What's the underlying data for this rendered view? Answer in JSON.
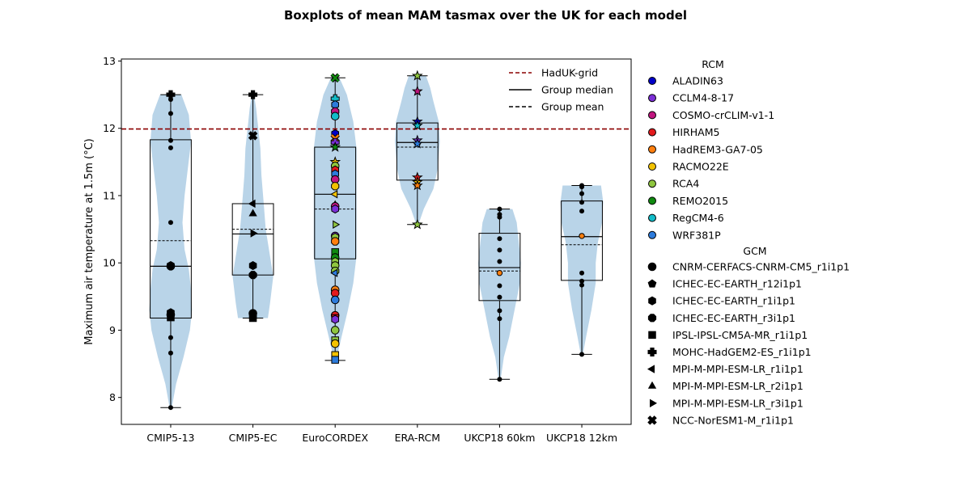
{
  "chart_data": {
    "type": "boxplot",
    "title": "Boxplots of mean MAM tasmax over the UK for each model",
    "xlabel": "",
    "ylabel": "Maximum air temperature at 1.5m (°C)",
    "ylim": [
      7.6,
      13.03
    ],
    "yticks": [
      8,
      9,
      10,
      11,
      12,
      13
    ],
    "reference_line": {
      "label": "HadUK-grid",
      "value": 11.99,
      "color": "#8b0000"
    },
    "categories": [
      "CMIP5-13",
      "CMIP5-EC",
      "EuroCORDEX",
      "ERA-RCM",
      "UKCP18 60km",
      "UKCP18 12km"
    ],
    "violin_color": "#b9d4e8",
    "groups": [
      {
        "name": "CMIP5-13",
        "box": {
          "whislo": 7.85,
          "q1": 9.18,
          "med": 9.95,
          "mean": 10.33,
          "q3": 11.83,
          "whishi": 12.5
        },
        "points": [
          {
            "y": 12.5,
            "m": "plus"
          },
          {
            "y": 12.43,
            "m": "dot"
          },
          {
            "y": 12.22,
            "m": "dot"
          },
          {
            "y": 11.82,
            "m": "dot"
          },
          {
            "y": 11.71,
            "m": "dot"
          },
          {
            "y": 10.6,
            "m": "dot"
          },
          {
            "y": 9.96,
            "m": "hexagon"
          },
          {
            "y": 9.95,
            "m": "circle"
          },
          {
            "y": 9.26,
            "m": "hexagon"
          },
          {
            "y": 9.23,
            "m": "circle"
          },
          {
            "y": 9.19,
            "m": "square"
          },
          {
            "y": 8.89,
            "m": "dot"
          },
          {
            "y": 8.66,
            "m": "dot"
          },
          {
            "y": 7.85,
            "m": "dot"
          }
        ]
      },
      {
        "name": "CMIP5-EC",
        "box": {
          "whislo": 9.18,
          "q1": 9.82,
          "med": 10.43,
          "mean": 10.5,
          "q3": 10.88,
          "whishi": 12.5
        },
        "points": [
          {
            "y": 12.5,
            "m": "plus"
          },
          {
            "y": 11.89,
            "m": "x"
          },
          {
            "y": 10.88,
            "m": "tri_left"
          },
          {
            "y": 10.73,
            "m": "tri_up"
          },
          {
            "y": 10.44,
            "m": "tri_right"
          },
          {
            "y": 9.96,
            "m": "hexagon"
          },
          {
            "y": 9.82,
            "m": "octagon"
          },
          {
            "y": 9.25,
            "m": "circle"
          },
          {
            "y": 9.2,
            "m": "hexagon"
          },
          {
            "y": 9.18,
            "m": "square"
          }
        ]
      },
      {
        "name": "EuroCORDEX",
        "box": {
          "whislo": 8.55,
          "q1": 10.06,
          "med": 11.02,
          "mean": 10.8,
          "q3": 11.72,
          "whishi": 12.75
        },
        "points": [
          {
            "y": 12.75,
            "m": "x",
            "c": "REMO2015"
          },
          {
            "y": 12.44,
            "m": "plus",
            "c": "RegCM4-6"
          },
          {
            "y": 12.35,
            "m": "hexagon",
            "c": "WRF381P"
          },
          {
            "y": 12.25,
            "m": "octagon",
            "c": "COSMO-crCLIM-v1-1"
          },
          {
            "y": 12.18,
            "m": "circle",
            "c": "RegCM4-6"
          },
          {
            "y": 11.92,
            "m": "hexagon",
            "c": "ALADIN63"
          },
          {
            "y": 11.85,
            "m": "x",
            "c": "HadREM3-GA7-05"
          },
          {
            "y": 11.79,
            "m": "plus",
            "c": "CCLM4-8-17"
          },
          {
            "y": 11.72,
            "m": "star",
            "c": "REMO2015"
          },
          {
            "y": 11.5,
            "m": "star",
            "c": "RACMO22E"
          },
          {
            "y": 11.44,
            "m": "circle",
            "c": "RCA4"
          },
          {
            "y": 11.38,
            "m": "hexagon",
            "c": "HIRHAM5"
          },
          {
            "y": 11.32,
            "m": "hexagon",
            "c": "WRF381P"
          },
          {
            "y": 11.24,
            "m": "circle",
            "c": "COSMO-crCLIM-v1-1"
          },
          {
            "y": 11.14,
            "m": "octagon",
            "c": "RACMO22E"
          },
          {
            "y": 11.02,
            "m": "tri_left",
            "c": "RACMO22E"
          },
          {
            "y": 10.86,
            "m": "tri_up",
            "c": "RCA4"
          },
          {
            "y": 10.84,
            "m": "circle",
            "c": "COSMO-crCLIM-v1-1"
          },
          {
            "y": 10.8,
            "m": "hexagon",
            "c": "CCLM4-8-17"
          },
          {
            "y": 10.57,
            "m": "tri_right",
            "c": "RCA4"
          },
          {
            "y": 10.4,
            "m": "circle",
            "c": "CCLM4-8-17"
          },
          {
            "y": 10.38,
            "m": "hexagon",
            "c": "RCA4"
          },
          {
            "y": 10.32,
            "m": "octagon",
            "c": "HadREM3-GA7-05"
          },
          {
            "y": 10.16,
            "m": "square",
            "c": "REMO2015"
          },
          {
            "y": 10.08,
            "m": "circle",
            "c": "REMO2015"
          },
          {
            "y": 10.02,
            "m": "hexagon",
            "c": "RCA4"
          },
          {
            "y": 9.96,
            "m": "circle",
            "c": "RCA4"
          },
          {
            "y": 9.88,
            "m": "octagon",
            "c": "RCA4"
          },
          {
            "y": 9.85,
            "m": "tri_left",
            "c": "WRF381P"
          },
          {
            "y": 9.6,
            "m": "circle",
            "c": "HadREM3-GA7-05"
          },
          {
            "y": 9.55,
            "m": "circle",
            "c": "HIRHAM5"
          },
          {
            "y": 9.45,
            "m": "circle",
            "c": "WRF381P"
          },
          {
            "y": 9.22,
            "m": "circle",
            "c": "HIRHAM5"
          },
          {
            "y": 9.18,
            "m": "square",
            "c": "HIRHAM5"
          },
          {
            "y": 9.16,
            "m": "hexagon",
            "c": "CCLM4-8-17"
          },
          {
            "y": 9.0,
            "m": "circle",
            "c": "RCA4"
          },
          {
            "y": 8.85,
            "m": "square",
            "c": "RCA4"
          },
          {
            "y": 8.8,
            "m": "circle",
            "c": "RACMO22E"
          },
          {
            "y": 8.63,
            "m": "square",
            "c": "RACMO22E"
          },
          {
            "y": 8.56,
            "m": "square",
            "c": "WRF381P"
          }
        ]
      },
      {
        "name": "ERA-RCM",
        "box": {
          "whislo": 10.57,
          "q1": 11.23,
          "med": 11.79,
          "mean": 11.72,
          "q3": 12.08,
          "whishi": 12.78
        },
        "points": [
          {
            "y": 12.78,
            "m": "star",
            "c": "RCA4"
          },
          {
            "y": 12.55,
            "m": "star",
            "c": "COSMO-crCLIM-v1-1"
          },
          {
            "y": 12.1,
            "m": "star",
            "c": "ALADIN63"
          },
          {
            "y": 12.04,
            "m": "star",
            "c": "RegCM4-6"
          },
          {
            "y": 11.82,
            "m": "star",
            "c": "CCLM4-8-17"
          },
          {
            "y": 11.77,
            "m": "star",
            "c": "WRF381P"
          },
          {
            "y": 11.27,
            "m": "star",
            "c": "HIRHAM5"
          },
          {
            "y": 11.2,
            "m": "star",
            "c": "RACMO22E"
          },
          {
            "y": 11.15,
            "m": "star",
            "c": "HadREM3-GA7-05"
          },
          {
            "y": 10.57,
            "m": "star",
            "c": "RCA4"
          }
        ]
      },
      {
        "name": "UKCP18 60km",
        "box": {
          "whislo": 8.27,
          "q1": 9.44,
          "med": 9.93,
          "mean": 9.88,
          "q3": 10.44,
          "whishi": 10.8
        },
        "points": [
          {
            "y": 10.8,
            "m": "dot"
          },
          {
            "y": 10.72,
            "m": "dot"
          },
          {
            "y": 10.68,
            "m": "dot"
          },
          {
            "y": 10.36,
            "m": "dot"
          },
          {
            "y": 10.19,
            "m": "dot"
          },
          {
            "y": 10.02,
            "m": "dot"
          },
          {
            "y": 9.85,
            "m": "dot",
            "c": "HadREM3-GA7-05"
          },
          {
            "y": 9.66,
            "m": "dot"
          },
          {
            "y": 9.49,
            "m": "dot"
          },
          {
            "y": 9.29,
            "m": "dot"
          },
          {
            "y": 9.17,
            "m": "dot"
          },
          {
            "y": 8.27,
            "m": "dot"
          }
        ]
      },
      {
        "name": "UKCP18 12km",
        "box": {
          "whislo": 8.64,
          "q1": 9.74,
          "med": 10.39,
          "mean": 10.27,
          "q3": 10.92,
          "whishi": 11.15
        },
        "points": [
          {
            "y": 11.15,
            "m": "dot"
          },
          {
            "y": 11.13,
            "m": "dot"
          },
          {
            "y": 11.03,
            "m": "dot"
          },
          {
            "y": 10.9,
            "m": "dot"
          },
          {
            "y": 10.77,
            "m": "dot"
          },
          {
            "y": 10.4,
            "m": "dot",
            "c": "HadREM3-GA7-05"
          },
          {
            "y": 9.85,
            "m": "dot"
          },
          {
            "y": 9.73,
            "m": "dot"
          },
          {
            "y": 9.67,
            "m": "dot"
          },
          {
            "y": 8.64,
            "m": "dot"
          }
        ]
      }
    ],
    "violins": [
      [
        [
          7.85,
          0.01
        ],
        [
          8.2,
          0.05
        ],
        [
          8.6,
          0.12
        ],
        [
          9.0,
          0.18
        ],
        [
          9.3,
          0.2
        ],
        [
          9.6,
          0.19
        ],
        [
          9.9,
          0.17
        ],
        [
          10.2,
          0.13
        ],
        [
          10.6,
          0.11
        ],
        [
          11.0,
          0.13
        ],
        [
          11.4,
          0.16
        ],
        [
          11.8,
          0.19
        ],
        [
          12.2,
          0.17
        ],
        [
          12.5,
          0.1
        ]
      ],
      [
        [
          9.18,
          0.14
        ],
        [
          9.4,
          0.16
        ],
        [
          9.8,
          0.19
        ],
        [
          10.1,
          0.16
        ],
        [
          10.5,
          0.12
        ],
        [
          10.9,
          0.1
        ],
        [
          11.3,
          0.08
        ],
        [
          11.7,
          0.07
        ],
        [
          12.0,
          0.05
        ],
        [
          12.3,
          0.03
        ],
        [
          12.5,
          0.01
        ]
      ],
      [
        [
          8.55,
          0.01
        ],
        [
          8.9,
          0.06
        ],
        [
          9.3,
          0.12
        ],
        [
          9.7,
          0.17
        ],
        [
          10.1,
          0.2
        ],
        [
          10.5,
          0.2
        ],
        [
          10.9,
          0.2
        ],
        [
          11.3,
          0.2
        ],
        [
          11.7,
          0.2
        ],
        [
          12.1,
          0.17
        ],
        [
          12.5,
          0.11
        ],
        [
          12.75,
          0.04
        ]
      ],
      [
        [
          10.57,
          0.01
        ],
        [
          10.8,
          0.06
        ],
        [
          11.1,
          0.15
        ],
        [
          11.4,
          0.19
        ],
        [
          11.8,
          0.21
        ],
        [
          12.1,
          0.2
        ],
        [
          12.4,
          0.15
        ],
        [
          12.6,
          0.12
        ],
        [
          12.78,
          0.08
        ]
      ],
      [
        [
          8.27,
          0.01
        ],
        [
          8.6,
          0.04
        ],
        [
          8.9,
          0.09
        ],
        [
          9.3,
          0.14
        ],
        [
          9.7,
          0.19
        ],
        [
          10.0,
          0.2
        ],
        [
          10.3,
          0.18
        ],
        [
          10.6,
          0.16
        ],
        [
          10.8,
          0.12
        ]
      ],
      [
        [
          8.64,
          0.01
        ],
        [
          8.9,
          0.04
        ],
        [
          9.3,
          0.09
        ],
        [
          9.7,
          0.13
        ],
        [
          10.0,
          0.13
        ],
        [
          10.3,
          0.15
        ],
        [
          10.6,
          0.19
        ],
        [
          10.9,
          0.2
        ],
        [
          11.15,
          0.18
        ]
      ]
    ],
    "legend_top": {
      "placement": "upper right",
      "entries": [
        {
          "label": "HadUK-grid",
          "style": "dashed",
          "color": "#8b0000"
        },
        {
          "label": "Group median",
          "style": "solid",
          "color": "#000000"
        },
        {
          "label": "Group mean",
          "style": "dashed",
          "color": "#000000"
        }
      ]
    },
    "rcm_legend": {
      "title": "RCM",
      "entries": [
        {
          "label": "ALADIN63",
          "color": "#0000c8"
        },
        {
          "label": "CCLM4-8-17",
          "color": "#7b2fd6"
        },
        {
          "label": "COSMO-crCLIM-v1-1",
          "color": "#c0157f"
        },
        {
          "label": "HIRHAM5",
          "color": "#e31a1c"
        },
        {
          "label": "HadREM3-GA7-05",
          "color": "#ff7f0e"
        },
        {
          "label": "RACMO22E",
          "color": "#f2c200"
        },
        {
          "label": "RCA4",
          "color": "#8fc63f"
        },
        {
          "label": "REMO2015",
          "color": "#108a10"
        },
        {
          "label": "RegCM4-6",
          "color": "#12bcc8"
        },
        {
          "label": "WRF381P",
          "color": "#2d7bdb"
        }
      ]
    },
    "gcm_legend": {
      "title": "GCM",
      "entries": [
        {
          "label": "CNRM-CERFACS-CNRM-CM5_r1i1p1",
          "marker": "circle"
        },
        {
          "label": "ICHEC-EC-EARTH_r12i1p1",
          "marker": "pentagon"
        },
        {
          "label": "ICHEC-EC-EARTH_r1i1p1",
          "marker": "hexagon"
        },
        {
          "label": "ICHEC-EC-EARTH_r3i1p1",
          "marker": "octagon"
        },
        {
          "label": "IPSL-IPSL-CM5A-MR_r1i1p1",
          "marker": "square"
        },
        {
          "label": "MOHC-HadGEM2-ES_r1i1p1",
          "marker": "plus"
        },
        {
          "label": "MPI-M-MPI-ESM-LR_r1i1p1",
          "marker": "tri_left"
        },
        {
          "label": "MPI-M-MPI-ESM-LR_r2i1p1",
          "marker": "tri_up"
        },
        {
          "label": "MPI-M-MPI-ESM-LR_r3i1p1",
          "marker": "tri_right"
        },
        {
          "label": "NCC-NorESM1-M_r1i1p1",
          "marker": "x"
        }
      ]
    }
  }
}
